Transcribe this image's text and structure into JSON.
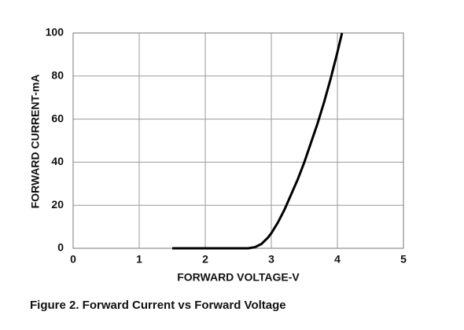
{
  "chart_data": {
    "type": "line",
    "x_label": "FORWARD VOLTAGE-V",
    "y_label": "FORWARD CURRENT-mA",
    "caption": "Figure 2. Forward Current vs Forward Voltage",
    "x": [
      1.5,
      2.0,
      2.5,
      2.65,
      2.75,
      2.85,
      2.95,
      3.0,
      3.1,
      3.2,
      3.3,
      3.4,
      3.5,
      3.6,
      3.7,
      3.8,
      3.9,
      4.0,
      4.07
    ],
    "values": [
      0,
      0,
      0,
      0,
      0.5,
      2,
      5,
      7,
      12,
      18,
      25,
      32,
      40,
      49,
      58,
      68,
      79,
      91,
      100
    ],
    "color": "#000000",
    "xlim": [
      0,
      5
    ],
    "xticks": [
      0,
      1,
      2,
      3,
      4,
      5
    ],
    "ylim": [
      0,
      100
    ],
    "yticks": [
      0,
      20,
      40,
      60,
      80,
      100
    ],
    "grid": true
  }
}
